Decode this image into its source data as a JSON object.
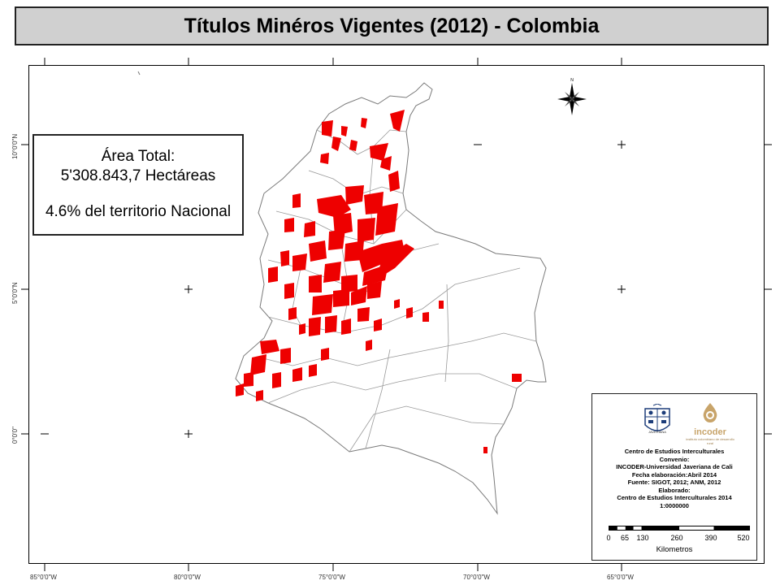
{
  "title": "Títulos Minéros Vigentes (2012) - Colombia",
  "area_box": {
    "line1": "Área Total:",
    "line2": "5'308.843,7 Hectáreas",
    "line3": "4.6% del territorio Nacional"
  },
  "longitude_labels": [
    "85°0'0\"W",
    "80°0'0\"W",
    "75°0'0\"W",
    "70°0'0\"W",
    "65°0'0\"W"
  ],
  "latitude_labels": [
    "10°0'0\"N",
    "5°0'0\"N",
    "0°0'0\""
  ],
  "legend": {
    "logo_javeriana_text": "JAVERIANA",
    "logo_incoder_text": "incoder",
    "logo_incoder_sub": "instituto colombiano de desarrollo rural",
    "credits": [
      "Centro de Estudios Interculturales",
      "Convenio:",
      "INCODER-Universidad Javeriana de Cali",
      "Fecha elaboración:Abril 2014",
      "Fuente: SIGOT, 2012;  ANM, 2012",
      "Elaborado:",
      "Centro de Estudios Interculturales 2014",
      "1:0000000"
    ],
    "scale_labels": [
      "0",
      "65",
      "130",
      "260",
      "390",
      "520"
    ],
    "scale_unit": "Kilometros"
  },
  "colors": {
    "mining_titles": "#ee0000",
    "borders": "#7a7a7a",
    "title_bg": "#d0d0d0"
  }
}
